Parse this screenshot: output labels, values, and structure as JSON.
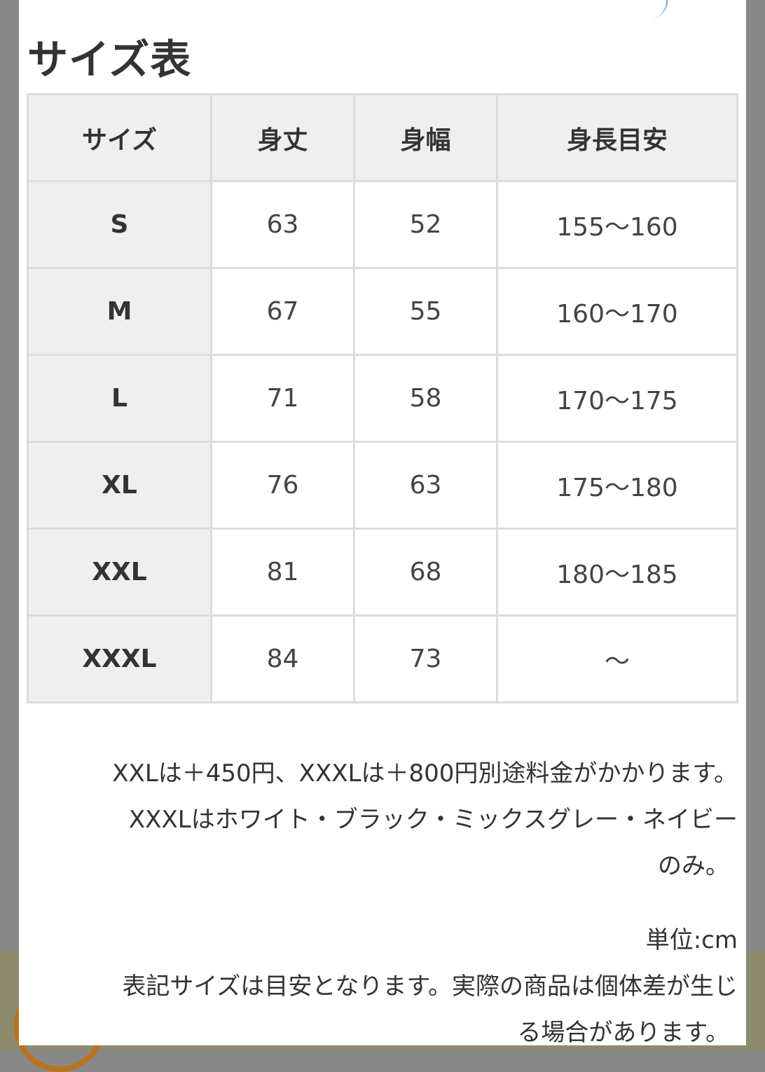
{
  "title": "サイズ表",
  "table": {
    "headers": [
      "サイズ",
      "身丈",
      "身幅",
      "身長目安"
    ],
    "rows": [
      {
        "size": "S",
        "length": "63",
        "width": "52",
        "height": "155〜160"
      },
      {
        "size": "M",
        "length": "67",
        "width": "55",
        "height": "160〜170"
      },
      {
        "size": "L",
        "length": "71",
        "width": "58",
        "height": "170〜175"
      },
      {
        "size": "XL",
        "length": "76",
        "width": "63",
        "height": "175〜180"
      },
      {
        "size": "XXL",
        "length": "81",
        "width": "68",
        "height": "180〜185"
      },
      {
        "size": "XXXL",
        "length": "84",
        "width": "73",
        "height": "〜"
      }
    ]
  },
  "notes": {
    "line1": "XXLは＋450円、XXXLは＋800円別途料金がかかります。",
    "line2": "XXXLはホワイト・ブラック・ミックスグレー・ネイビー",
    "line3": "のみ。",
    "unit": "単位:cm",
    "disclaimer1": "表記サイズは目安となります。実際の商品は個体差が生じ",
    "disclaimer2": "る場合があります。"
  }
}
